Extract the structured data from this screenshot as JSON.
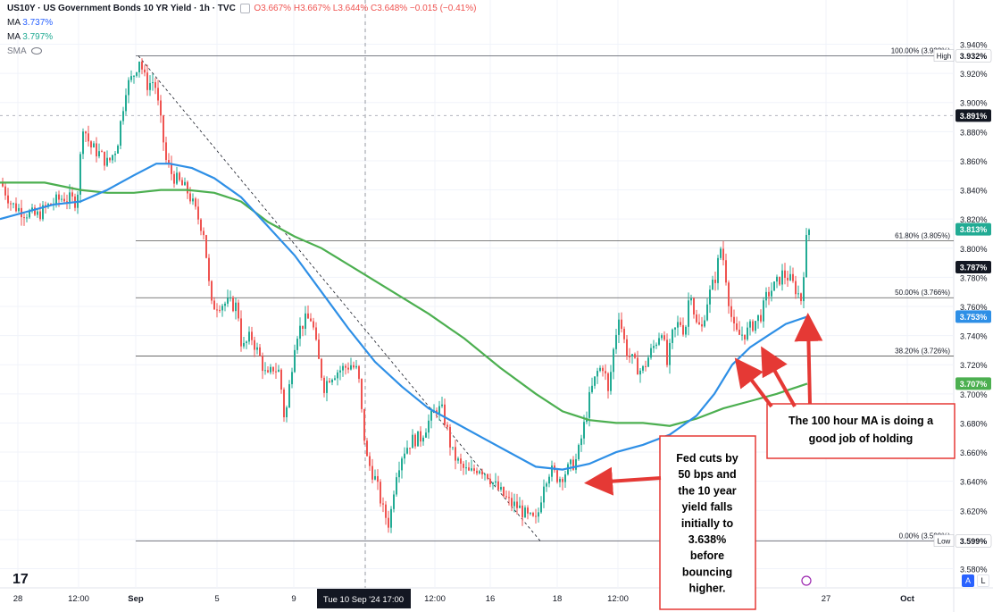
{
  "legend": {
    "symbol": "US10Y · US Government Bonds 10 YR Yield · 1h · TVC",
    "ohlc": "O3.667% H3.667% L3.644% C3.648% −0.015 (−0.41%)",
    "ma1_label": "MA",
    "ma1_value": "3.737%",
    "ma2_label": "MA",
    "ma2_value": "3.797%",
    "sma_label": "SMA"
  },
  "buttons": {
    "a": "A",
    "l": "L"
  },
  "logo": "17",
  "colors": {
    "up": "#22ab94",
    "down": "#ef5350",
    "ma100": "#2e8fe6",
    "ma200": "#4caf50",
    "annotation": "#e53935"
  },
  "chart_data": {
    "type": "candlestick",
    "title": "US10Y · US Government Bonds 10 YR Yield · 1h · TVC",
    "ylim": [
      3.573,
      3.955
    ],
    "y_ticks": [
      "3.940%",
      "3.920%",
      "3.900%",
      "3.880%",
      "3.860%",
      "3.840%",
      "3.820%",
      "3.800%",
      "3.780%",
      "3.760%",
      "3.740%",
      "3.720%",
      "3.700%",
      "3.680%",
      "3.660%",
      "3.640%",
      "3.620%",
      "3.600%",
      "3.580%"
    ],
    "x_ticks": [
      "28",
      "12:00",
      "Sep",
      "5",
      "9",
      "12:00",
      "16",
      "18",
      "12:00",
      "27",
      "Oct"
    ],
    "crosshair_label": "Tue 10 Sep '24   17:00",
    "price_labels": [
      {
        "label": "High",
        "value": "3.932%"
      },
      {
        "value": "3.891%"
      },
      {
        "value": "3.813%"
      },
      {
        "value": "3.787%"
      },
      {
        "value": "3.753%"
      },
      {
        "value": "3.707%"
      },
      {
        "label": "Low",
        "value": "3.599%"
      }
    ],
    "fib_levels": [
      {
        "label": "100.00% (3.932%)",
        "value": 3.932
      },
      {
        "label": "61.80% (3.805%)",
        "value": 3.805
      },
      {
        "label": "50.00% (3.766%)",
        "value": 3.766
      },
      {
        "label": "38.20% (3.726%)",
        "value": 3.726
      },
      {
        "label": "0.00% (3.599%)",
        "value": 3.599
      }
    ],
    "series": [
      {
        "name": "MA",
        "value": "3.737%"
      },
      {
        "name": "MA",
        "value": "3.797%"
      }
    ],
    "close_path": [
      [
        0,
        3.845
      ],
      [
        12,
        3.83
      ],
      [
        25,
        3.825
      ],
      [
        40,
        3.822
      ],
      [
        55,
        3.83
      ],
      [
        70,
        3.835
      ],
      [
        85,
        3.832
      ],
      [
        92,
        3.885
      ],
      [
        100,
        3.87
      ],
      [
        110,
        3.865
      ],
      [
        120,
        3.858
      ],
      [
        130,
        3.87
      ],
      [
        140,
        3.91
      ],
      [
        148,
        3.918
      ],
      [
        155,
        3.93
      ],
      [
        163,
        3.912
      ],
      [
        172,
        3.915
      ],
      [
        180,
        3.882
      ],
      [
        185,
        3.86
      ],
      [
        192,
        3.85
      ],
      [
        200,
        3.845
      ],
      [
        210,
        3.838
      ],
      [
        220,
        3.822
      ],
      [
        228,
        3.81
      ],
      [
        232,
        3.78
      ],
      [
        236,
        3.76
      ],
      [
        245,
        3.762
      ],
      [
        255,
        3.762
      ],
      [
        265,
        3.76
      ],
      [
        270,
        3.73
      ],
      [
        280,
        3.74
      ],
      [
        290,
        3.725
      ],
      [
        298,
        3.71
      ],
      [
        305,
        3.718
      ],
      [
        312,
        3.715
      ],
      [
        318,
        3.68
      ],
      [
        322,
        3.7
      ],
      [
        330,
        3.74
      ],
      [
        340,
        3.75
      ],
      [
        348,
        3.752
      ],
      [
        355,
        3.725
      ],
      [
        362,
        3.705
      ],
      [
        368,
        3.712
      ],
      [
        375,
        3.715
      ],
      [
        385,
        3.718
      ],
      [
        392,
        3.72
      ],
      [
        400,
        3.715
      ],
      [
        405,
        3.68
      ],
      [
        410,
        3.655
      ],
      [
        420,
        3.64
      ],
      [
        428,
        3.62
      ],
      [
        435,
        3.61
      ],
      [
        442,
        3.645
      ],
      [
        450,
        3.66
      ],
      [
        460,
        3.668
      ],
      [
        470,
        3.67
      ],
      [
        478,
        3.68
      ],
      [
        488,
        3.69
      ],
      [
        494,
        3.688
      ],
      [
        498,
        3.68
      ],
      [
        505,
        3.66
      ],
      [
        515,
        3.65
      ],
      [
        525,
        3.645
      ],
      [
        535,
        3.65
      ],
      [
        545,
        3.645
      ],
      [
        552,
        3.638
      ],
      [
        560,
        3.632
      ],
      [
        570,
        3.625
      ],
      [
        580,
        3.622
      ],
      [
        590,
        3.615
      ],
      [
        600,
        3.612
      ],
      [
        608,
        3.64
      ],
      [
        615,
        3.648
      ],
      [
        625,
        3.642
      ],
      [
        635,
        3.648
      ],
      [
        645,
        3.655
      ],
      [
        652,
        3.675
      ],
      [
        660,
        3.7
      ],
      [
        668,
        3.715
      ],
      [
        675,
        3.72
      ],
      [
        680,
        3.7
      ],
      [
        686,
        3.73
      ],
      [
        692,
        3.755
      ],
      [
        700,
        3.73
      ],
      [
        710,
        3.72
      ],
      [
        718,
        3.715
      ],
      [
        725,
        3.725
      ],
      [
        733,
        3.735
      ],
      [
        740,
        3.745
      ],
      [
        746,
        3.72
      ],
      [
        752,
        3.74
      ],
      [
        760,
        3.75
      ],
      [
        766,
        3.742
      ],
      [
        772,
        3.775
      ],
      [
        778,
        3.748
      ],
      [
        785,
        3.745
      ],
      [
        790,
        3.762
      ],
      [
        800,
        3.78
      ],
      [
        806,
        3.8
      ],
      [
        810,
        3.79
      ],
      [
        815,
        3.765
      ],
      [
        820,
        3.745
      ],
      [
        825,
        3.74
      ],
      [
        835,
        3.742
      ],
      [
        845,
        3.75
      ],
      [
        852,
        3.755
      ],
      [
        858,
        3.768
      ],
      [
        868,
        3.775
      ],
      [
        875,
        3.782
      ],
      [
        882,
        3.78
      ],
      [
        890,
        3.772
      ],
      [
        896,
        3.765
      ],
      [
        902,
        3.805
      ],
      [
        905,
        3.813
      ]
    ],
    "high_reference": {
      "value": 3.932,
      "label": "High"
    },
    "low_reference": {
      "value": 3.599,
      "label": "Low"
    },
    "ma100_path": [
      [
        0,
        3.82
      ],
      [
        30,
        3.825
      ],
      [
        60,
        3.83
      ],
      [
        90,
        3.832
      ],
      [
        120,
        3.84
      ],
      [
        150,
        3.85
      ],
      [
        175,
        3.858
      ],
      [
        190,
        3.858
      ],
      [
        215,
        3.855
      ],
      [
        240,
        3.848
      ],
      [
        270,
        3.835
      ],
      [
        300,
        3.815
      ],
      [
        330,
        3.795
      ],
      [
        360,
        3.77
      ],
      [
        390,
        3.745
      ],
      [
        420,
        3.722
      ],
      [
        450,
        3.705
      ],
      [
        480,
        3.69
      ],
      [
        510,
        3.68
      ],
      [
        540,
        3.67
      ],
      [
        570,
        3.66
      ],
      [
        600,
        3.65
      ],
      [
        630,
        3.648
      ],
      [
        660,
        3.652
      ],
      [
        690,
        3.66
      ],
      [
        720,
        3.665
      ],
      [
        750,
        3.672
      ],
      [
        780,
        3.685
      ],
      [
        800,
        3.7
      ],
      [
        820,
        3.72
      ],
      [
        840,
        3.732
      ],
      [
        860,
        3.74
      ],
      [
        880,
        3.748
      ],
      [
        904,
        3.753
      ]
    ],
    "ma200_path": [
      [
        0,
        3.845
      ],
      [
        50,
        3.845
      ],
      [
        90,
        3.84
      ],
      [
        120,
        3.838
      ],
      [
        150,
        3.838
      ],
      [
        180,
        3.84
      ],
      [
        210,
        3.84
      ],
      [
        240,
        3.838
      ],
      [
        270,
        3.832
      ],
      [
        300,
        3.818
      ],
      [
        330,
        3.808
      ],
      [
        360,
        3.8
      ],
      [
        400,
        3.785
      ],
      [
        440,
        3.77
      ],
      [
        480,
        3.755
      ],
      [
        520,
        3.738
      ],
      [
        560,
        3.718
      ],
      [
        600,
        3.7
      ],
      [
        630,
        3.688
      ],
      [
        660,
        3.682
      ],
      [
        690,
        3.68
      ],
      [
        720,
        3.68
      ],
      [
        750,
        3.678
      ],
      [
        780,
        3.683
      ],
      [
        810,
        3.69
      ],
      [
        840,
        3.695
      ],
      [
        870,
        3.7
      ],
      [
        904,
        3.707
      ]
    ],
    "trendline": {
      "from": [
        155,
        3.932
      ],
      "to": [
        605,
        3.599
      ]
    },
    "annotations": [
      {
        "text": "The 100 hour MA is doing a good job of holding",
        "lines": [
          "The 100 hour MA is doing a",
          "good job of holding"
        ]
      },
      {
        "text": "Fed cuts by 50 bps and the 10 year yield falls initially to 3.638% before bouncing higher.",
        "lines": [
          "Fed cuts by",
          "50 bps and",
          "the 10 year",
          "yield falls",
          "initially to",
          "3.638%",
          "before",
          "bouncing",
          "higher."
        ]
      }
    ]
  }
}
